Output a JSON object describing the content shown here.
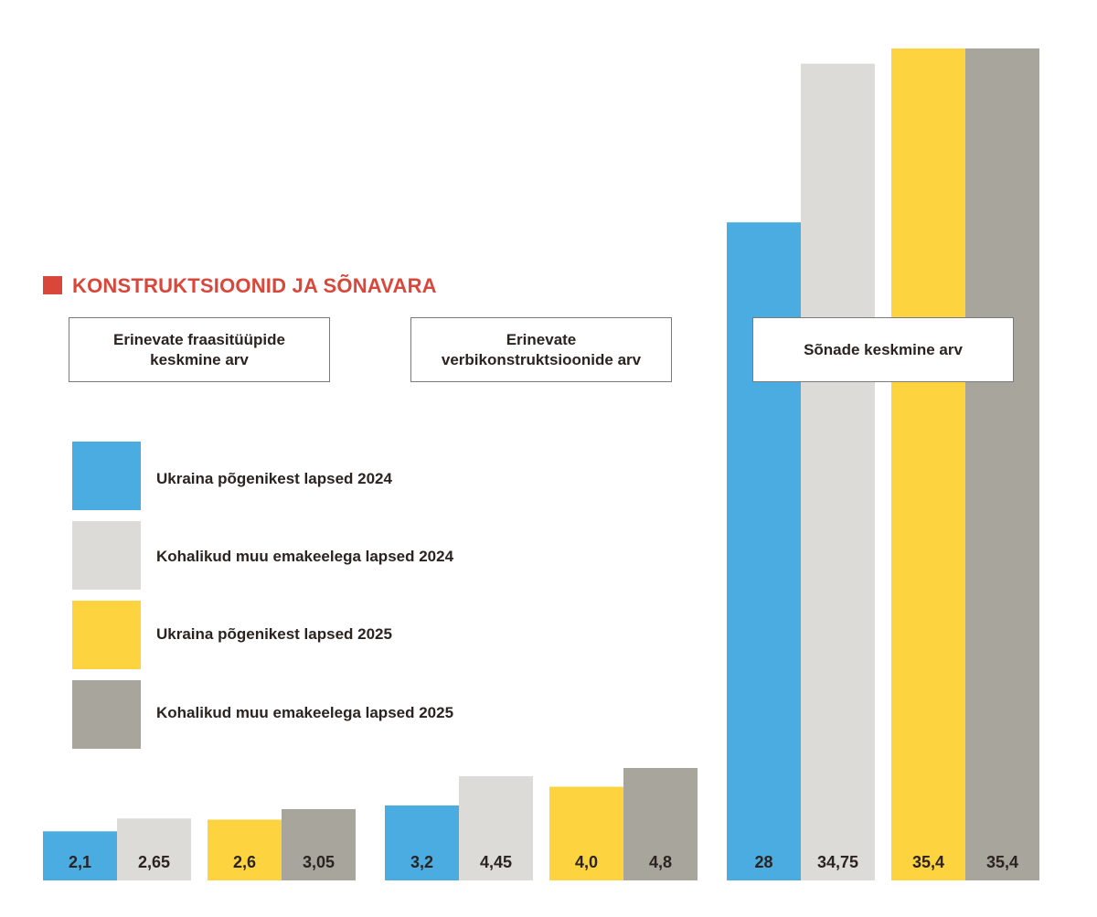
{
  "title": "KONSTRUKTSIOONID JA SÕNAVARA",
  "colors": {
    "title": "#d9473a",
    "series": [
      "#4aace1",
      "#dcdbd7",
      "#fdd340",
      "#a8a59d"
    ],
    "label": "#2b2320"
  },
  "group_labels": [
    "Erinevate fraasitüüpide keskmine arv",
    "Erinevate verbikonstruktsioonide arv",
    "Sõnade keskmine arv"
  ],
  "legend": [
    "Ukraina põgenikest lapsed 2024",
    "Kohalikud muu emakeelega lapsed 2024",
    "Ukraina põgenikest lapsed 2025",
    "Kohalikud muu emakeelega lapsed 2025"
  ],
  "chart_data": [
    {
      "type": "bar",
      "title": "Erinevate fraasitüüpide keskmine arv",
      "series": [
        {
          "name": "Ukraina põgenikest lapsed 2024",
          "value": 2.1,
          "label": "2,1"
        },
        {
          "name": "Kohalikud muu emakeelega lapsed 2024",
          "value": 2.65,
          "label": "2,65"
        },
        {
          "name": "Ukraina põgenikest lapsed 2025",
          "value": 2.6,
          "label": "2,6"
        },
        {
          "name": "Kohalikud muu emakeelega lapsed 2025",
          "value": 3.05,
          "label": "3,05"
        }
      ]
    },
    {
      "type": "bar",
      "title": "Erinevate verbikonstruktsioonide arv",
      "series": [
        {
          "name": "Ukraina põgenikest lapsed 2024",
          "value": 3.2,
          "label": "3,2"
        },
        {
          "name": "Kohalikud muu emakeelega lapsed 2024",
          "value": 4.45,
          "label": "4,45"
        },
        {
          "name": "Ukraina põgenikest lapsed 2025",
          "value": 4.0,
          "label": "4,0"
        },
        {
          "name": "Kohalikud muu emakeelega lapsed 2025",
          "value": 4.8,
          "label": "4,8"
        }
      ]
    },
    {
      "type": "bar",
      "title": "Sõnade keskmine arv",
      "series": [
        {
          "name": "Ukraina põgenikest lapsed 2024",
          "value": 28,
          "label": "28"
        },
        {
          "name": "Kohalikud muu emakeelega lapsed 2024",
          "value": 34.75,
          "label": "34,75"
        },
        {
          "name": "Ukraina põgenikest lapsed 2025",
          "value": 35.4,
          "label": "35,4"
        },
        {
          "name": "Kohalikud muu emakeelega lapsed 2025",
          "value": 35.4,
          "label": "35,4"
        }
      ]
    }
  ]
}
